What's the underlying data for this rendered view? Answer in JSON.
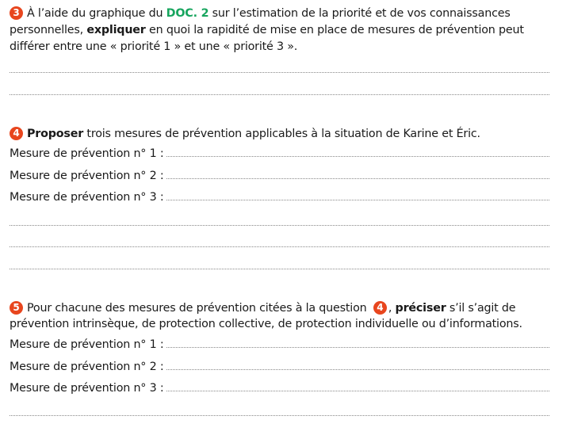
{
  "q3": {
    "number": "3",
    "line1_pre": "À l’aide du graphique du ",
    "doc_ref": "DOC. 2",
    "line1_post": " sur l’estimation de la priorité et de vos connaissances",
    "line2_pre": "personnelles, ",
    "verb": "expliquer",
    "line2_post": " en quoi la rapidité de mise en place de mesures de prévention peut",
    "line3": "différer entre une « priorité 1 » et une « priorité 3 »."
  },
  "q4": {
    "number": "4",
    "verb": "Proposer",
    "text": " trois mesures de prévention applicables à la situation de Karine et Éric.",
    "measures": [
      "Mesure de prévention n° 1 :",
      "Mesure de prévention n° 2 :",
      "Mesure de prévention n° 3 :"
    ]
  },
  "q5": {
    "number": "5",
    "line1_pre": "Pour chacune des mesures de prévention citées à la question ",
    "ref_number": "4",
    "line1_mid": ", ",
    "verb": "préciser",
    "line1_post": " s’il s’agit de",
    "line2": "prévention intrinsèque, de protection collective, de protection individuelle ou d’informations.",
    "measures": [
      "Mesure de prévention n° 1 :",
      "Mesure de prévention n° 2 :",
      "Mesure de prévention n° 3 :"
    ]
  },
  "colors": {
    "accent_green": "#17a55e",
    "number_badge": "#e8461e"
  }
}
